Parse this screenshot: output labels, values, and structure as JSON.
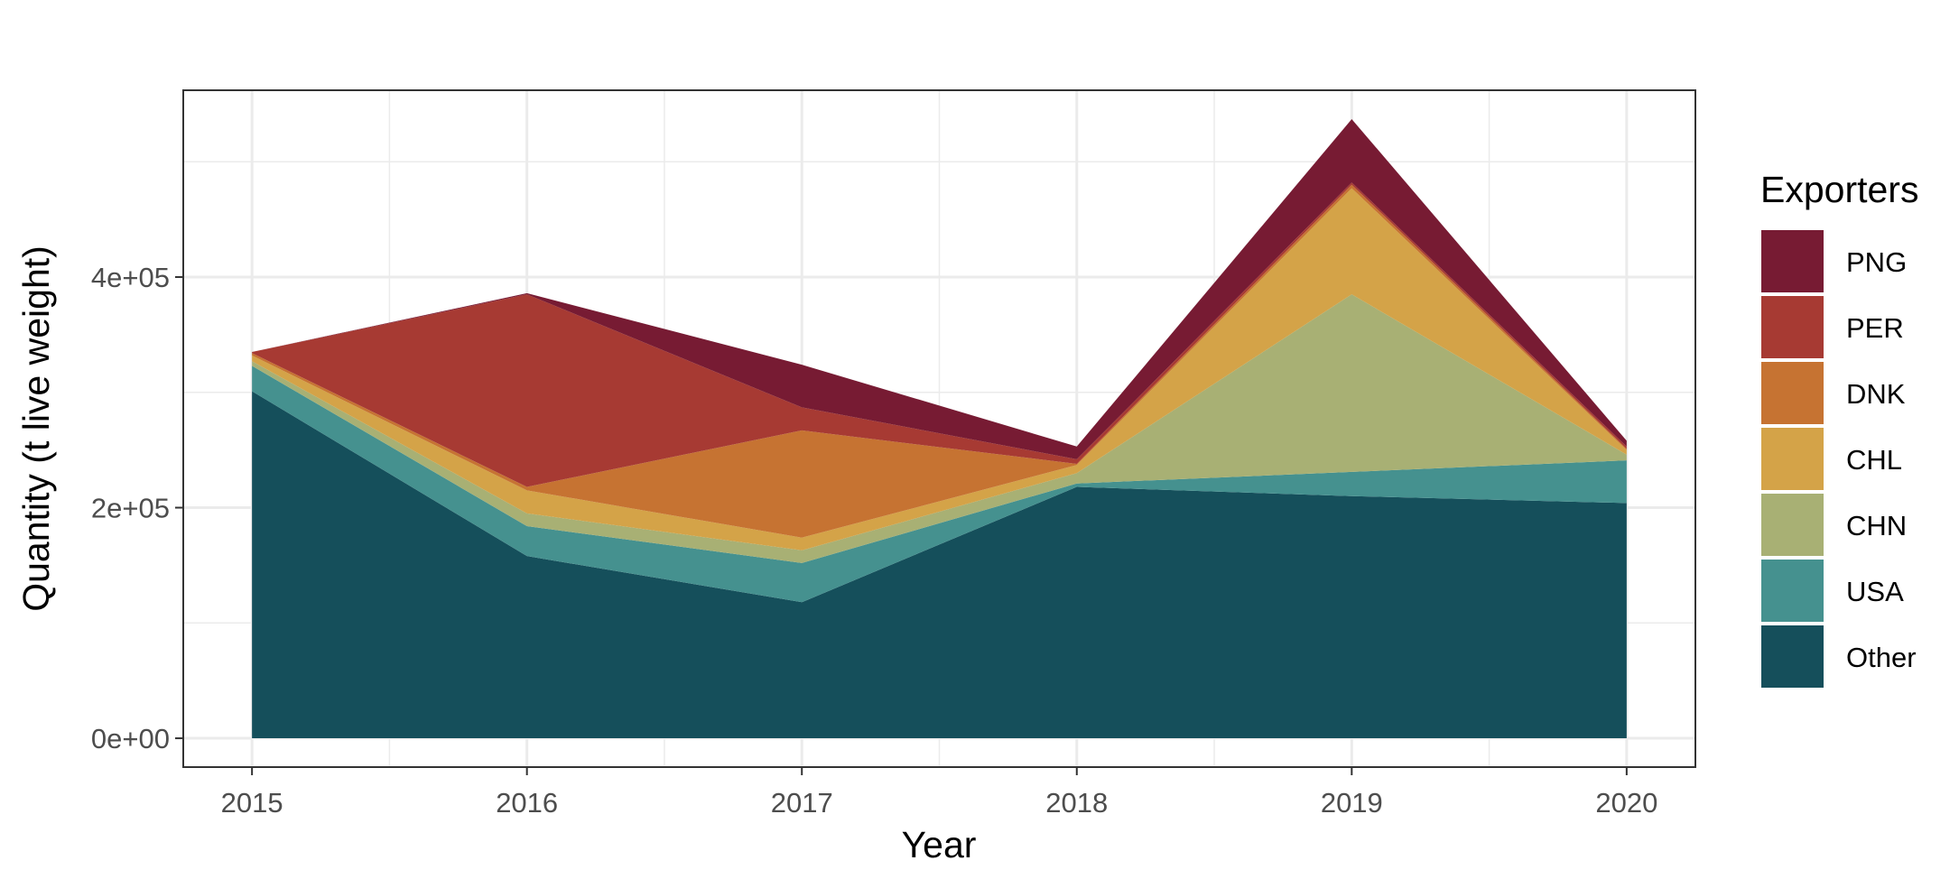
{
  "chart_data": {
    "type": "area",
    "stacked": true,
    "xlabel": "Year",
    "ylabel": "Quantity (t live weight)",
    "x": [
      2015,
      2016,
      2017,
      2018,
      2019,
      2020
    ],
    "xlim": [
      2014.75,
      2020.25
    ],
    "ylim": [
      -25000,
      562000
    ],
    "y_ticks": [
      0,
      200000,
      400000
    ],
    "y_tick_labels": [
      "0e+00",
      "2e+05",
      "4e+05"
    ],
    "grid": true,
    "legend_title": "Exporters",
    "legend_position": "right",
    "series": [
      {
        "name": "Other",
        "color": "#154f5b",
        "values": [
          301000,
          158000,
          118000,
          218000,
          210000,
          204000
        ]
      },
      {
        "name": "USA",
        "color": "#45918f",
        "values": [
          22000,
          26000,
          34000,
          3000,
          21000,
          37000
        ]
      },
      {
        "name": "CHN",
        "color": "#a8b074",
        "values": [
          4000,
          11000,
          11000,
          9000,
          154000,
          5000
        ]
      },
      {
        "name": "CHL",
        "color": "#d4a348",
        "values": [
          5000,
          20000,
          11000,
          7000,
          92000,
          4000
        ]
      },
      {
        "name": "DNK",
        "color": "#c67332",
        "values": [
          2000,
          3000,
          93000,
          1000,
          3000,
          1000
        ]
      },
      {
        "name": "PER",
        "color": "#a73a33",
        "values": [
          1000,
          167000,
          20000,
          4000,
          2000,
          2000
        ]
      },
      {
        "name": "PNG",
        "color": "#771b33",
        "values": [
          0,
          1000,
          37000,
          11000,
          55000,
          5000
        ]
      }
    ],
    "legend_order": [
      "PNG",
      "PER",
      "DNK",
      "CHL",
      "CHN",
      "USA",
      "Other"
    ]
  }
}
